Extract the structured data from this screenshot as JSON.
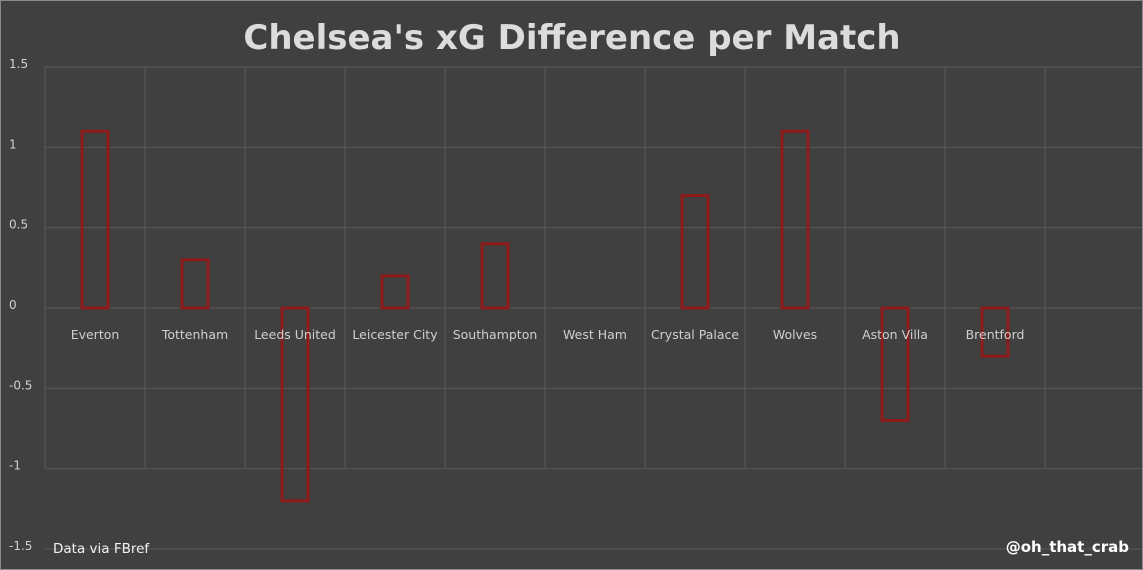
{
  "chart_data": {
    "type": "bar",
    "title": "Chelsea's xG Difference per Match",
    "categories": [
      "Everton",
      "Tottenham",
      "Leeds United",
      "Leicester City",
      "Southampton",
      "West Ham",
      "Crystal Palace",
      "Wolves",
      "Aston Villa",
      "Brentford"
    ],
    "series": [
      {
        "values": [
          1.1,
          0.3,
          -1.2,
          0.2,
          0.4,
          0,
          0.7,
          1.1,
          -0.7,
          -0.3
        ]
      }
    ],
    "yticks": [
      "1.5",
      "1",
      "0.5",
      "0",
      "-0.5",
      "-1",
      "-1.5"
    ],
    "ylim": [
      -1.5,
      1.5
    ],
    "grid": true,
    "bar_color": "#8c1b1b",
    "background_color": "#404040",
    "gridline_color": "#5a5a5a"
  },
  "footer": {
    "source": "Data via FBref",
    "author": "@oh_that_crab"
  }
}
